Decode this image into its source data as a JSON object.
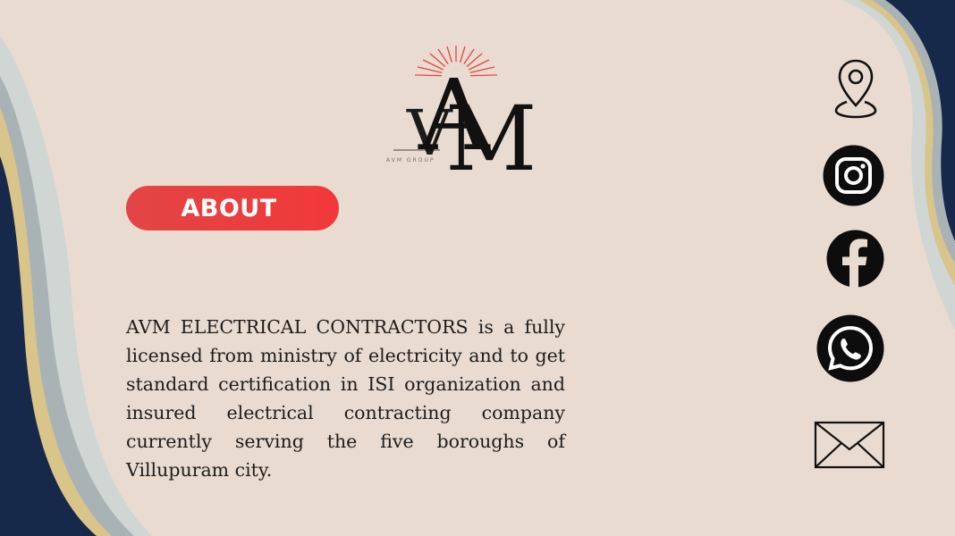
{
  "logo": {
    "initials": "AVM",
    "letter_a": "A",
    "letter_v": "V",
    "letter_m": "M",
    "small_text": "AVM GROUP",
    "accent_color": "#e24545"
  },
  "about": {
    "heading": "ABOUT",
    "body": "AVM ELECTRICAL CONTRACTORS is a fully licensed from ministry of electricity and to get standard certification in ISI organization and insured electrical contracting company currently serving the five boroughs of Villupuram city."
  },
  "contact_icons": [
    {
      "icon": "location-pin-icon"
    },
    {
      "icon": "instagram-icon"
    },
    {
      "icon": "facebook-icon"
    },
    {
      "icon": "whatsapp-icon"
    },
    {
      "icon": "email-icon"
    }
  ],
  "colors": {
    "background": "#e9dbd0",
    "navy": "#17294a",
    "gold": "#d9c48a",
    "slate": "#a9b3b5",
    "pill_red": "#e24545"
  }
}
